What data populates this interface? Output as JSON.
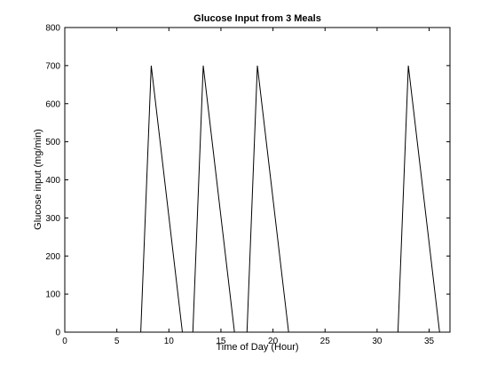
{
  "chart_data": {
    "type": "line",
    "title": "Glucose Input from 3 Meals",
    "xlabel": "Time of Day (Hour)",
    "ylabel": "Glucose input (mg/min)",
    "xlim": [
      0,
      37
    ],
    "ylim": [
      0,
      800
    ],
    "xticks": [
      0,
      5,
      10,
      15,
      20,
      25,
      30,
      35
    ],
    "yticks": [
      0,
      100,
      200,
      300,
      400,
      500,
      600,
      700,
      800
    ],
    "grid": false,
    "line_color": "#000000",
    "series": [
      {
        "x": [
          0,
          7.3,
          8.3,
          11.3,
          12.3,
          13.3,
          16.3,
          17.5,
          18.5,
          21.5,
          32.0,
          33.0,
          36.0,
          37
        ],
        "y": [
          0,
          0,
          700,
          0,
          0,
          700,
          0,
          0,
          700,
          0,
          0,
          700,
          0,
          0
        ]
      }
    ]
  }
}
